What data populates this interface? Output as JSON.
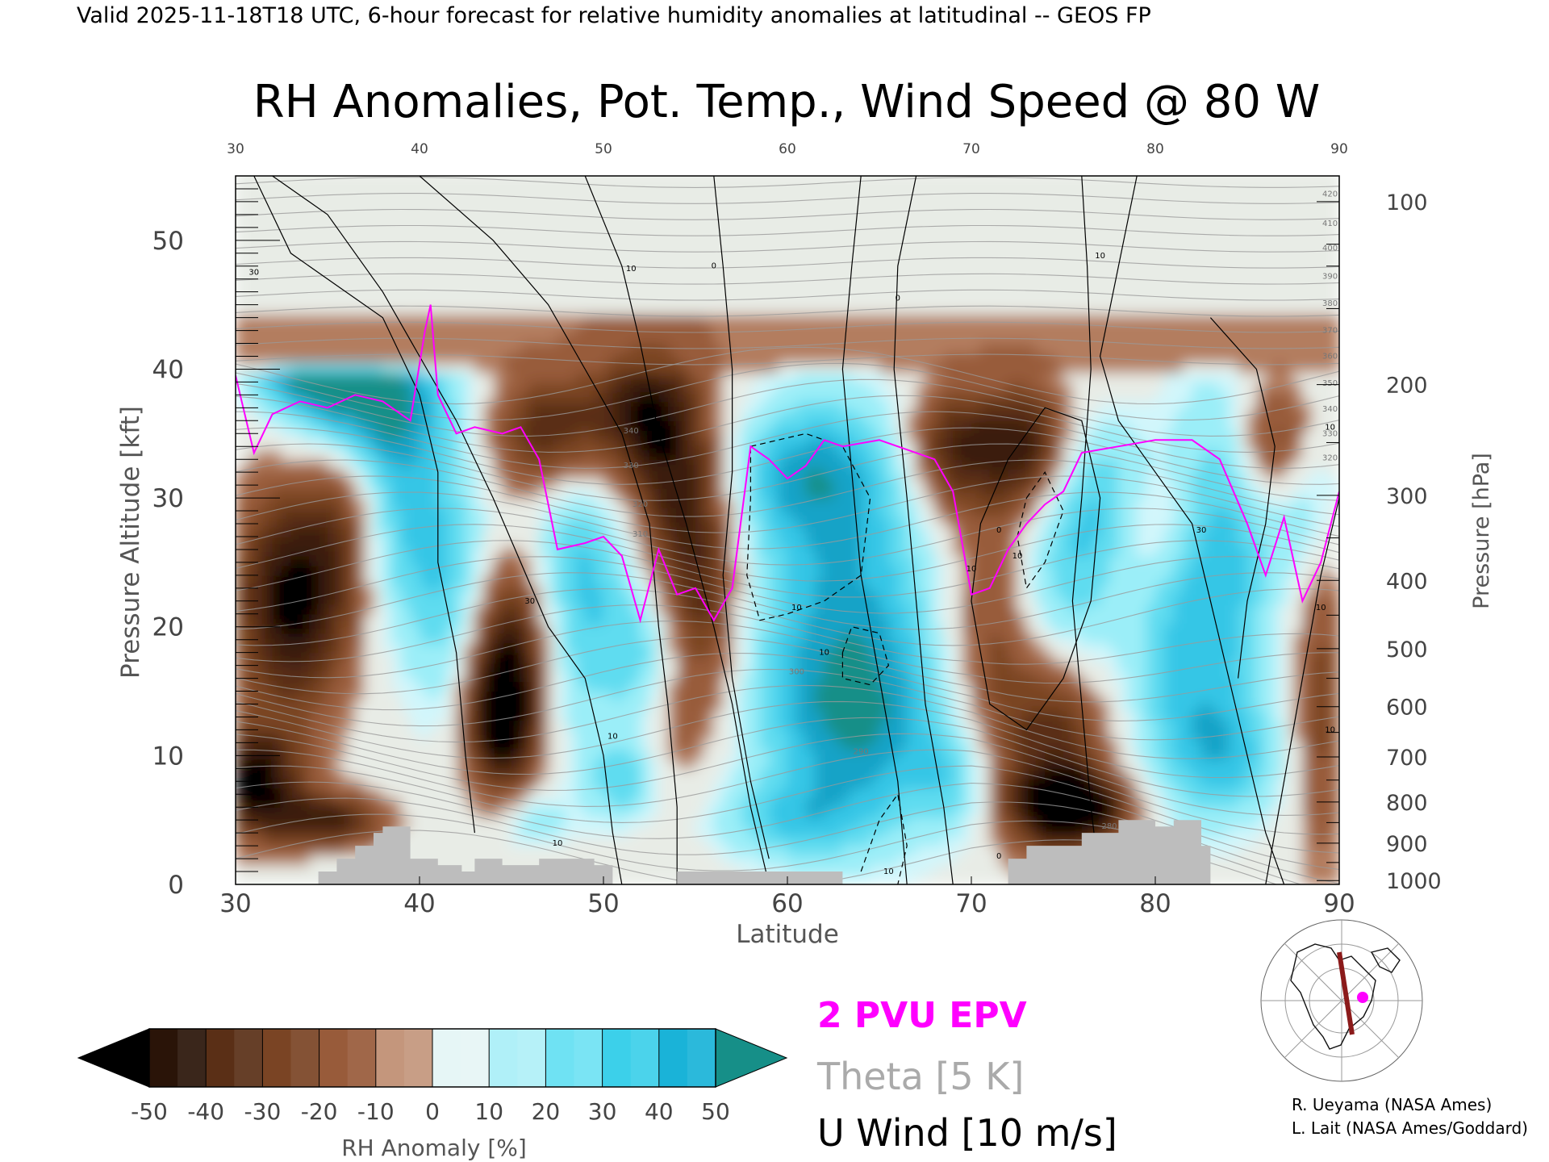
{
  "header": "Valid 2025-11-18T18 UTC, 6-hour forecast for relative humidity anomalies at latitudinal -- GEOS FP",
  "chart_data": {
    "type": "heatmap",
    "title": "RH Anomalies, Pot. Temp., Wind Speed @ 80 W",
    "xlabel": "Latitude",
    "ylabel_left": "Pressure Altitude [kft]",
    "ylabel_right": "Pressure [hPa]",
    "xlim": [
      30,
      90
    ],
    "ylim": [
      0,
      55
    ],
    "x_ticks": [
      "30",
      "40",
      "50",
      "60",
      "70",
      "80",
      "90"
    ],
    "y_ticks_left": [
      "0",
      "10",
      "20",
      "30",
      "40",
      "50"
    ],
    "y_ticks_right": [
      {
        "label": "100",
        "kft": 53
      },
      {
        "label": "200",
        "kft": 38.8
      },
      {
        "label": "300",
        "kft": 30.2
      },
      {
        "label": "400",
        "kft": 23.6
      },
      {
        "label": "500",
        "kft": 18.3
      },
      {
        "label": "600",
        "kft": 13.8
      },
      {
        "label": "700",
        "kft": 9.9
      },
      {
        "label": "800",
        "kft": 6.4
      },
      {
        "label": "900",
        "kft": 3.2
      },
      {
        "label": "1000",
        "kft": 0.3
      }
    ],
    "theta_labels": [
      {
        "label": "420",
        "lat": 89.5,
        "kft": 53.6
      },
      {
        "label": "410",
        "lat": 89.5,
        "kft": 51.3
      },
      {
        "label": "400",
        "lat": 89.5,
        "kft": 49.4
      },
      {
        "label": "390",
        "lat": 89.5,
        "kft": 47.2
      },
      {
        "label": "380",
        "lat": 89.5,
        "kft": 45.1
      },
      {
        "label": "370",
        "lat": 89.5,
        "kft": 43.0
      },
      {
        "label": "360",
        "lat": 89.5,
        "kft": 41.0
      },
      {
        "label": "350",
        "lat": 89.5,
        "kft": 38.9
      },
      {
        "label": "340",
        "lat": 89.5,
        "kft": 36.9
      },
      {
        "label": "330",
        "lat": 89.5,
        "kft": 35.0
      },
      {
        "label": "320",
        "lat": 89.5,
        "kft": 33.1
      },
      {
        "label": "310",
        "lat": 52.0,
        "kft": 27.2
      },
      {
        "label": "300",
        "lat": 60.5,
        "kft": 16.5
      },
      {
        "label": "290",
        "lat": 64.0,
        "kft": 10.3
      },
      {
        "label": "280",
        "lat": 77.5,
        "kft": 4.5
      },
      {
        "label": "320",
        "lat": 52.0,
        "kft": 29.5
      },
      {
        "label": "330",
        "lat": 51.5,
        "kft": 32.5
      },
      {
        "label": "340",
        "lat": 51.5,
        "kft": 35.2
      }
    ],
    "u_wind_labels": [
      {
        "label": "30",
        "lat": 31,
        "kft": 47.5
      },
      {
        "label": "10",
        "lat": 51.5,
        "kft": 47.8
      },
      {
        "label": "0",
        "lat": 56,
        "kft": 48.0
      },
      {
        "label": "0",
        "lat": 66,
        "kft": 45.5
      },
      {
        "label": "10",
        "lat": 77,
        "kft": 48.8
      },
      {
        "label": "30",
        "lat": 46,
        "kft": 22.0
      },
      {
        "label": "10",
        "lat": 50.5,
        "kft": 11.5
      },
      {
        "label": "10",
        "lat": 47.5,
        "kft": 3.2
      },
      {
        "label": "10",
        "lat": 60.5,
        "kft": 21.5
      },
      {
        "label": "10",
        "lat": 62.0,
        "kft": 18.0
      },
      {
        "label": "10",
        "lat": 70.0,
        "kft": 24.5
      },
      {
        "label": "10",
        "lat": 72.5,
        "kft": 25.5
      },
      {
        "label": "0",
        "lat": 71.5,
        "kft": 27.5
      },
      {
        "label": "0",
        "lat": 71.5,
        "kft": 2.2
      },
      {
        "label": "10",
        "lat": 65.5,
        "kft": 1.0
      },
      {
        "label": "30",
        "lat": 82.5,
        "kft": 27.5
      },
      {
        "label": "10",
        "lat": 89.5,
        "kft": 35.5
      },
      {
        "label": "10",
        "lat": 89.0,
        "kft": 21.5
      },
      {
        "label": "10",
        "lat": 89.5,
        "kft": 12.0
      }
    ],
    "colorbar": {
      "label": "RH Anomaly [%]",
      "ticks": [
        "-50",
        "-40",
        "-30",
        "-20",
        "-10",
        "0",
        "10",
        "20",
        "30",
        "40",
        "50"
      ],
      "colors": [
        "#3a1c0c",
        "#5a2f16",
        "#7a4424",
        "#985b3a",
        "#b37d5f",
        "#d8b5a1",
        "#d2f6fb",
        "#9beef8",
        "#5fdcf0",
        "#34c6e6",
        "#19a3c7"
      ],
      "under_color": "#000000",
      "over_color": "#168f88"
    },
    "legend": [
      {
        "label": "2 PVU EPV",
        "color": "#ff00ff"
      },
      {
        "label": "Theta [5 K]",
        "color": "#aaaaaa"
      },
      {
        "label": "U Wind [10 m/s]",
        "color": "#000000"
      }
    ],
    "pv2_line": [
      [
        30,
        39.5
      ],
      [
        31,
        33.5
      ],
      [
        32,
        36.5
      ],
      [
        33.5,
        37.5
      ],
      [
        35,
        37.0
      ],
      [
        36.5,
        38.0
      ],
      [
        38,
        37.5
      ],
      [
        39.5,
        36.0
      ],
      [
        40.3,
        43.0
      ],
      [
        40.6,
        45.0
      ],
      [
        41,
        38.0
      ],
      [
        42,
        35.0
      ],
      [
        43,
        35.5
      ],
      [
        44.5,
        35.0
      ],
      [
        45.5,
        35.5
      ],
      [
        46.5,
        33.0
      ],
      [
        47.5,
        26.0
      ],
      [
        49,
        26.5
      ],
      [
        50,
        27.0
      ],
      [
        51,
        25.5
      ],
      [
        52,
        20.5
      ],
      [
        53,
        26.0
      ],
      [
        54,
        22.5
      ],
      [
        55,
        23.0
      ],
      [
        56,
        20.5
      ],
      [
        57,
        23.0
      ],
      [
        58,
        34.0
      ],
      [
        59,
        33.0
      ],
      [
        60,
        31.5
      ],
      [
        61,
        32.5
      ],
      [
        62,
        34.5
      ],
      [
        63,
        34.0
      ],
      [
        65,
        34.5
      ],
      [
        67,
        33.5
      ],
      [
        68,
        33.0
      ],
      [
        69,
        30.5
      ],
      [
        70,
        22.5
      ],
      [
        71,
        23.0
      ],
      [
        72,
        26.0
      ],
      [
        73,
        28.0
      ],
      [
        74,
        29.5
      ],
      [
        75,
        30.5
      ],
      [
        76,
        33.5
      ],
      [
        78,
        34.0
      ],
      [
        80,
        34.5
      ],
      [
        82,
        34.5
      ],
      [
        83.5,
        33.0
      ],
      [
        85,
        28.0
      ],
      [
        86,
        24.0
      ],
      [
        87,
        28.5
      ],
      [
        88,
        22.0
      ],
      [
        89,
        25.0
      ],
      [
        90,
        30.5
      ]
    ],
    "terrain_kft": [
      [
        30,
        0
      ],
      [
        34.5,
        0
      ],
      [
        34.5,
        1
      ],
      [
        35.5,
        1
      ],
      [
        35.5,
        2
      ],
      [
        36.5,
        2
      ],
      [
        36.5,
        3
      ],
      [
        37.5,
        3
      ],
      [
        37.5,
        4
      ],
      [
        38,
        4
      ],
      [
        38,
        4.5
      ],
      [
        39.5,
        4.5
      ],
      [
        39.5,
        2
      ],
      [
        41,
        2
      ],
      [
        41,
        1.5
      ],
      [
        42.3,
        1.5
      ],
      [
        42.3,
        1
      ],
      [
        43,
        1
      ],
      [
        43,
        2
      ],
      [
        44.5,
        2
      ],
      [
        44.5,
        1.5
      ],
      [
        46.5,
        1.5
      ],
      [
        46.5,
        2
      ],
      [
        49.5,
        2
      ],
      [
        49.5,
        1.5
      ],
      [
        50.5,
        1.5
      ],
      [
        50.5,
        0
      ],
      [
        54,
        0
      ],
      [
        54,
        1
      ],
      [
        63,
        1
      ],
      [
        63,
        0
      ],
      [
        72,
        0
      ],
      [
        72,
        2
      ],
      [
        73,
        2
      ],
      [
        73,
        3
      ],
      [
        76,
        3
      ],
      [
        76,
        4
      ],
      [
        78,
        4
      ],
      [
        78,
        5
      ],
      [
        80,
        5
      ],
      [
        80,
        4.5
      ],
      [
        81,
        4.5
      ],
      [
        81,
        5
      ],
      [
        82.5,
        5
      ],
      [
        82.5,
        3
      ],
      [
        83,
        3
      ],
      [
        83,
        0
      ],
      [
        90,
        0
      ]
    ],
    "grid": false
  },
  "credits": [
    "R. Ueyama (NASA Ames)",
    "L. Lait (NASA Ames/Goddard)"
  ]
}
